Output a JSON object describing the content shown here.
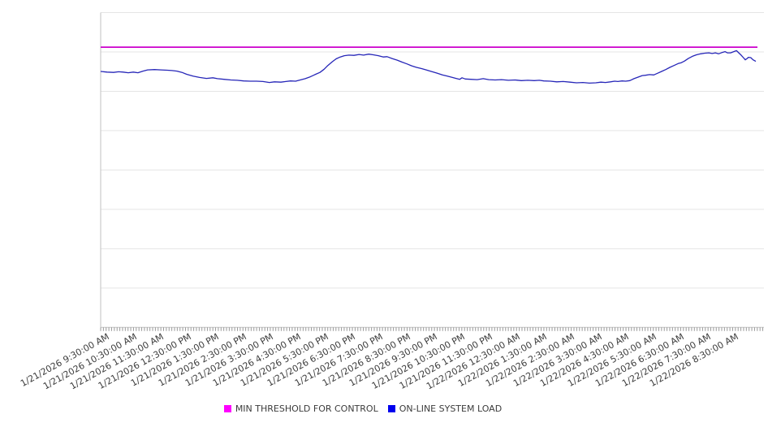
{
  "chart_data": {
    "type": "line",
    "title": "",
    "grid": true,
    "legend_position": "bottom-center",
    "x_axis": {
      "start": "1/21/2026 9:30:00 AM",
      "tick_labels": [
        "1/21/2026 9:30:00 AM",
        "1/21/2026 10:30:00 AM",
        "1/21/2026 11:30:00 AM",
        "1/21/2026 12:30:00 PM",
        "1/21/2026 1:30:00 PM",
        "1/21/2026 2:30:00 PM",
        "1/21/2026 3:30:00 PM",
        "1/21/2026 4:30:00 PM",
        "1/21/2026 5:30:00 PM",
        "1/21/2026 6:30:00 PM",
        "1/21/2026 7:30:00 PM",
        "1/21/2026 8:30:00 PM",
        "1/21/2026 9:30:00 PM",
        "1/21/2026 10:30:00 PM",
        "1/21/2026 11:30:00 PM",
        "1/22/2026 12:30:00 AM",
        "1/22/2026 1:30:00 AM",
        "1/22/2026 2:30:00 AM",
        "1/22/2026 3:30:00 AM",
        "1/22/2026 4:30:00 AM",
        "1/22/2026 5:30:00 AM",
        "1/22/2026 6:30:00 AM",
        "1/22/2026 7:30:00 AM",
        "1/22/2026 8:30:00 AM"
      ],
      "label_interval_minutes": 60,
      "minor_ticks_dense": true
    },
    "y_axis": {
      "labels_visible": false,
      "scale": "normalized-percent-of-plot-height",
      "range": [
        0,
        100
      ],
      "gridline_divisions": 8
    },
    "series": [
      {
        "name": "MIN THRESHOLD FOR CONTROL",
        "kind": "constant",
        "value": 89.0,
        "line_color": "#cc00cc",
        "legend_swatch_color": "#ff00ff"
      },
      {
        "name": "ON-LINE SYSTEM LOAD",
        "kind": "points",
        "t_minutes_total": 1425,
        "points": [
          [
            0,
            81.3
          ],
          [
            14,
            81.1
          ],
          [
            28,
            81.0
          ],
          [
            39,
            81.2
          ],
          [
            49,
            81.1
          ],
          [
            60,
            80.9
          ],
          [
            71,
            81.1
          ],
          [
            81,
            80.9
          ],
          [
            92,
            81.4
          ],
          [
            102,
            81.8
          ],
          [
            117,
            81.9
          ],
          [
            131,
            81.8
          ],
          [
            145,
            81.7
          ],
          [
            155,
            81.6
          ],
          [
            166,
            81.4
          ],
          [
            177,
            81.0
          ],
          [
            187,
            80.4
          ],
          [
            201,
            79.8
          ],
          [
            215,
            79.4
          ],
          [
            230,
            79.1
          ],
          [
            244,
            79.3
          ],
          [
            254,
            79.0
          ],
          [
            268,
            78.8
          ],
          [
            283,
            78.6
          ],
          [
            297,
            78.5
          ],
          [
            311,
            78.3
          ],
          [
            325,
            78.2
          ],
          [
            339,
            78.2
          ],
          [
            353,
            78.1
          ],
          [
            367,
            77.8
          ],
          [
            378,
            78.0
          ],
          [
            392,
            77.9
          ],
          [
            403,
            78.1
          ],
          [
            413,
            78.3
          ],
          [
            424,
            78.2
          ],
          [
            434,
            78.6
          ],
          [
            445,
            79.0
          ],
          [
            456,
            79.6
          ],
          [
            466,
            80.3
          ],
          [
            477,
            81.0
          ],
          [
            486,
            82.0
          ],
          [
            494,
            83.2
          ],
          [
            503,
            84.3
          ],
          [
            512,
            85.3
          ],
          [
            521,
            85.9
          ],
          [
            530,
            86.3
          ],
          [
            540,
            86.5
          ],
          [
            551,
            86.4
          ],
          [
            562,
            86.7
          ],
          [
            572,
            86.5
          ],
          [
            583,
            86.8
          ],
          [
            593,
            86.6
          ],
          [
            604,
            86.3
          ],
          [
            615,
            85.9
          ],
          [
            623,
            86.0
          ],
          [
            634,
            85.4
          ],
          [
            645,
            84.9
          ],
          [
            655,
            84.3
          ],
          [
            666,
            83.7
          ],
          [
            676,
            83.1
          ],
          [
            687,
            82.6
          ],
          [
            698,
            82.2
          ],
          [
            708,
            81.8
          ],
          [
            719,
            81.3
          ],
          [
            731,
            80.8
          ],
          [
            743,
            80.2
          ],
          [
            754,
            79.8
          ],
          [
            765,
            79.4
          ],
          [
            773,
            79.1
          ],
          [
            781,
            78.8
          ],
          [
            786,
            79.3
          ],
          [
            793,
            78.9
          ],
          [
            805,
            78.8
          ],
          [
            819,
            78.7
          ],
          [
            832,
            79.0
          ],
          [
            844,
            78.7
          ],
          [
            858,
            78.6
          ],
          [
            872,
            78.7
          ],
          [
            887,
            78.5
          ],
          [
            901,
            78.6
          ],
          [
            915,
            78.4
          ],
          [
            929,
            78.5
          ],
          [
            943,
            78.4
          ],
          [
            954,
            78.5
          ],
          [
            964,
            78.3
          ],
          [
            978,
            78.2
          ],
          [
            992,
            78.0
          ],
          [
            1006,
            78.1
          ],
          [
            1021,
            77.9
          ],
          [
            1035,
            77.7
          ],
          [
            1049,
            77.8
          ],
          [
            1063,
            77.6
          ],
          [
            1077,
            77.7
          ],
          [
            1088,
            77.9
          ],
          [
            1098,
            77.8
          ],
          [
            1109,
            78.0
          ],
          [
            1118,
            78.2
          ],
          [
            1125,
            78.1
          ],
          [
            1134,
            78.3
          ],
          [
            1142,
            78.2
          ],
          [
            1151,
            78.4
          ],
          [
            1160,
            79.0
          ],
          [
            1169,
            79.5
          ],
          [
            1178,
            80.0
          ],
          [
            1185,
            80.1
          ],
          [
            1194,
            80.3
          ],
          [
            1203,
            80.2
          ],
          [
            1211,
            80.7
          ],
          [
            1220,
            81.3
          ],
          [
            1229,
            81.9
          ],
          [
            1238,
            82.6
          ],
          [
            1247,
            83.2
          ],
          [
            1256,
            83.8
          ],
          [
            1263,
            84.1
          ],
          [
            1270,
            84.6
          ],
          [
            1278,
            85.4
          ],
          [
            1287,
            86.1
          ],
          [
            1296,
            86.6
          ],
          [
            1305,
            86.9
          ],
          [
            1314,
            87.1
          ],
          [
            1323,
            87.2
          ],
          [
            1330,
            87.0
          ],
          [
            1337,
            87.2
          ],
          [
            1344,
            86.9
          ],
          [
            1351,
            87.3
          ],
          [
            1358,
            87.6
          ],
          [
            1363,
            87.2
          ],
          [
            1370,
            87.2
          ],
          [
            1377,
            87.6
          ],
          [
            1383,
            87.9
          ],
          [
            1388,
            87.2
          ],
          [
            1393,
            86.5
          ],
          [
            1398,
            85.7
          ],
          [
            1402,
            85.0
          ],
          [
            1406,
            85.4
          ],
          [
            1409,
            85.8
          ],
          [
            1414,
            85.7
          ],
          [
            1419,
            85.0
          ],
          [
            1425,
            84.5
          ]
        ],
        "line_color": "#2626b8",
        "legend_swatch_color": "#0000ee"
      }
    ],
    "colors": {
      "gridline": "#e5e5e5",
      "axis": "#c2c2c2",
      "minor_tick": "#9a9a9a",
      "tick_label": "#3c3c3c"
    }
  }
}
